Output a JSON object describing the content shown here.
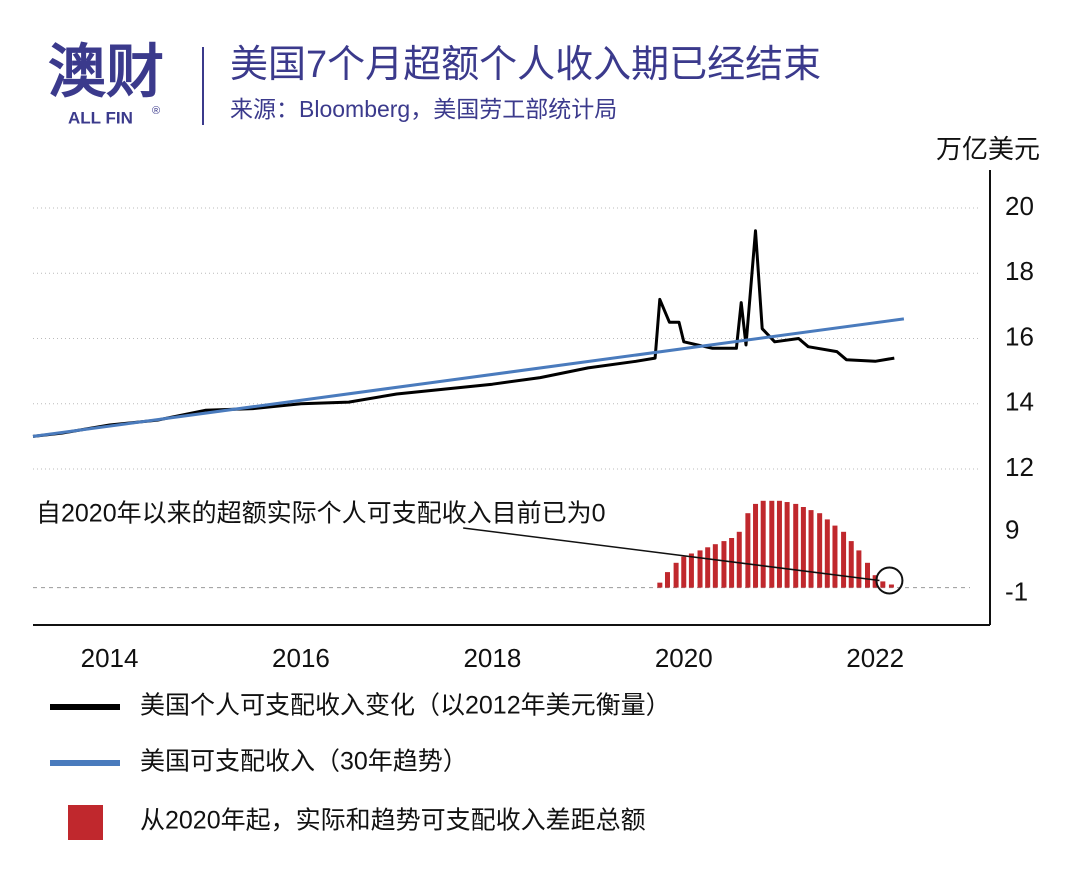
{
  "header": {
    "logo": "澳财",
    "logo_sub": "ALL FIN",
    "logo_mark": "®",
    "title": "美国7个月超额个人收入期已经结束",
    "source": "来源：Bloomberg，美国劳工部统计局"
  },
  "chart_data": [
    {
      "type": "line",
      "y_label": "万亿美元",
      "xlim": [
        2013.2,
        2023.2
      ],
      "xticks": [
        2014,
        2016,
        2018,
        2020,
        2022
      ],
      "ylim": [
        12,
        20
      ],
      "yticks": [
        12,
        14,
        16,
        18,
        20
      ],
      "grid": true,
      "series": [
        {
          "name": "美国个人可支配收入变化（以2012年美元衡量）",
          "color": "#000000",
          "x": [
            2013.2,
            2013.5,
            2014,
            2014.5,
            2015,
            2015.5,
            2016,
            2016.5,
            2017,
            2017.5,
            2018,
            2018.5,
            2019,
            2019.5,
            2019.7,
            2019.75,
            2019.85,
            2019.95,
            2020.0,
            2020.3,
            2020.55,
            2020.6,
            2020.65,
            2020.75,
            2020.82,
            2020.95,
            2021.2,
            2021.3,
            2021.6,
            2021.7,
            2022.0,
            2022.2
          ],
          "values": [
            13.0,
            13.1,
            13.35,
            13.5,
            13.8,
            13.85,
            14.0,
            14.05,
            14.3,
            14.45,
            14.6,
            14.8,
            15.1,
            15.3,
            15.4,
            17.2,
            16.5,
            16.5,
            15.9,
            15.7,
            15.7,
            17.1,
            15.8,
            19.3,
            16.3,
            15.9,
            16.0,
            15.75,
            15.6,
            15.35,
            15.3,
            15.4
          ]
        },
        {
          "name": "美国可支配收入（30年趋势）",
          "color": "#4a7bbd",
          "x": [
            2013.2,
            2022.3
          ],
          "values": [
            13.0,
            16.6
          ]
        }
      ]
    },
    {
      "type": "bar",
      "annotation": "自2020年以来的超额实际个人可支配收入目前已为0",
      "xlim": [
        2013.2,
        2023.2
      ],
      "ylim": [
        -2,
        15
      ],
      "yticks": [
        -1,
        9
      ],
      "series": [
        {
          "name": "从2020年起，实际和趋势可支配收入差距总额",
          "color": "#c0282d",
          "x": [
            2019.75,
            2019.83,
            2019.92,
            2020.0,
            2020.08,
            2020.17,
            2020.25,
            2020.33,
            2020.42,
            2020.5,
            2020.58,
            2020.67,
            2020.75,
            2020.83,
            2020.92,
            2021.0,
            2021.08,
            2021.17,
            2021.25,
            2021.33,
            2021.42,
            2021.5,
            2021.58,
            2021.67,
            2021.75,
            2021.83,
            2021.92,
            2022.0,
            2022.08,
            2022.17
          ],
          "values": [
            0.8,
            2.5,
            4,
            5,
            5.5,
            6,
            6.5,
            7,
            7.5,
            8,
            9,
            12,
            13.5,
            14,
            14,
            14,
            13.8,
            13.5,
            13,
            12.5,
            12,
            11,
            10,
            9,
            7.5,
            6,
            4,
            2,
            1,
            0.5
          ]
        }
      ]
    }
  ]
}
